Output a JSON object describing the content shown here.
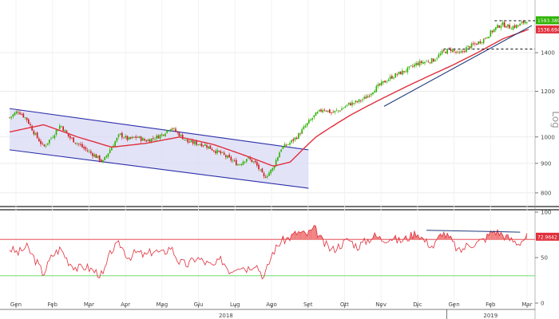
{
  "chart_data": {
    "type": "candlestick",
    "price_scale": "log",
    "price_axis_label": "Log",
    "price_ticks": [
      800,
      900,
      1000,
      1200,
      1400
    ],
    "price_ylim": [
      760,
      1700
    ],
    "month_labels": [
      "Gen",
      "Feb",
      "Mar",
      "Apr",
      "Mag",
      "Giu",
      "Lug",
      "Ago",
      "Set",
      "Ott",
      "Nov",
      "Dic",
      "Gen",
      "Feb",
      "Mar"
    ],
    "year_labels": [
      "2018",
      "2019"
    ],
    "last_price_label": "1593.3899",
    "ma_price_label": "1536.6946",
    "colors": {
      "up": "#2db300",
      "down": "#cc1f1f",
      "ma": "#e0303c",
      "channel": "#2b2fa8",
      "channel_fill": "#d7d7f5",
      "trend": "#203a7a",
      "rsi": "#e0303c",
      "rsi_fill": "#f08080",
      "rsi_upper": "#e0303c",
      "rsi_lower": "#5cd65c"
    },
    "price_anchors": [
      [
        0,
        1080
      ],
      [
        1,
        1110
      ],
      [
        2,
        1075
      ],
      [
        3,
        1010
      ],
      [
        4,
        960
      ],
      [
        5,
        1000
      ],
      [
        6,
        1050
      ],
      [
        7,
        1000
      ],
      [
        8,
        975
      ],
      [
        9,
        950
      ],
      [
        10,
        930
      ],
      [
        11,
        905
      ],
      [
        12,
        960
      ],
      [
        13,
        1010
      ],
      [
        14,
        990
      ],
      [
        15,
        1000
      ],
      [
        16,
        985
      ],
      [
        17,
        995
      ],
      [
        18,
        1010
      ],
      [
        19,
        1040
      ],
      [
        20,
        1010
      ],
      [
        21,
        980
      ],
      [
        22,
        975
      ],
      [
        23,
        970
      ],
      [
        24,
        950
      ],
      [
        25,
        935
      ],
      [
        26,
        915
      ],
      [
        27,
        895
      ],
      [
        28,
        920
      ],
      [
        29,
        900
      ],
      [
        30,
        850
      ],
      [
        31,
        880
      ],
      [
        32,
        955
      ],
      [
        33,
        975
      ],
      [
        34,
        1005
      ],
      [
        35,
        1050
      ],
      [
        36,
        1090
      ],
      [
        37,
        1120
      ],
      [
        38,
        1100
      ],
      [
        39,
        1115
      ],
      [
        40,
        1140
      ],
      [
        41,
        1150
      ],
      [
        42,
        1170
      ],
      [
        43,
        1210
      ],
      [
        44,
        1240
      ],
      [
        45,
        1270
      ],
      [
        46,
        1290
      ],
      [
        47,
        1310
      ],
      [
        48,
        1340
      ],
      [
        49,
        1350
      ],
      [
        50,
        1360
      ],
      [
        51,
        1400
      ],
      [
        52,
        1420
      ],
      [
        53,
        1390
      ],
      [
        54,
        1430
      ],
      [
        55,
        1450
      ],
      [
        56,
        1480
      ],
      [
        57,
        1530
      ],
      [
        58,
        1570
      ],
      [
        59,
        1550
      ],
      [
        60,
        1560
      ],
      [
        61,
        1593
      ]
    ],
    "ma_anchors": [
      [
        0,
        1020
      ],
      [
        4,
        1050
      ],
      [
        8,
        1000
      ],
      [
        12,
        960
      ],
      [
        16,
        975
      ],
      [
        20,
        1000
      ],
      [
        24,
        970
      ],
      [
        28,
        925
      ],
      [
        31,
        890
      ],
      [
        33,
        905
      ],
      [
        36,
        1000
      ],
      [
        40,
        1090
      ],
      [
        44,
        1170
      ],
      [
        48,
        1250
      ],
      [
        52,
        1330
      ],
      [
        55,
        1400
      ],
      [
        58,
        1480
      ],
      [
        61,
        1536
      ]
    ],
    "channel": {
      "upper": [
        [
          0,
          1120
        ],
        [
          34,
          950
        ]
      ],
      "lower": [
        [
          0,
          950
        ],
        [
          34,
          815
        ]
      ]
    },
    "trendline": [
      [
        44,
        1130
      ],
      [
        61,
        1540
      ]
    ],
    "resistance_levels": [
      {
        "from": 51,
        "to": 61,
        "level": 1420
      },
      {
        "from": 57,
        "to": 61,
        "level": 1590
      }
    ],
    "rsi": {
      "label": "72.9642",
      "ticks": [
        0,
        50,
        100
      ],
      "upper_band": 70,
      "lower_band": 30,
      "divergence_line": [
        [
          49,
          80
        ],
        [
          60,
          78
        ]
      ],
      "anchors": [
        [
          0,
          60
        ],
        [
          1,
          55
        ],
        [
          2,
          62
        ],
        [
          3,
          48
        ],
        [
          4,
          32
        ],
        [
          5,
          52
        ],
        [
          6,
          60
        ],
        [
          7,
          45
        ],
        [
          8,
          38
        ],
        [
          9,
          40
        ],
        [
          10,
          35
        ],
        [
          11,
          30
        ],
        [
          12,
          58
        ],
        [
          13,
          65
        ],
        [
          14,
          50
        ],
        [
          15,
          56
        ],
        [
          16,
          52
        ],
        [
          17,
          58
        ],
        [
          18,
          54
        ],
        [
          19,
          62
        ],
        [
          20,
          45
        ],
        [
          21,
          42
        ],
        [
          22,
          50
        ],
        [
          23,
          45
        ],
        [
          24,
          40
        ],
        [
          25,
          48
        ],
        [
          26,
          35
        ],
        [
          27,
          42
        ],
        [
          28,
          38
        ],
        [
          29,
          44
        ],
        [
          30,
          28
        ],
        [
          31,
          55
        ],
        [
          32,
          68
        ],
        [
          33,
          72
        ],
        [
          34,
          78
        ],
        [
          35,
          75
        ],
        [
          36,
          82
        ],
        [
          37,
          66
        ],
        [
          38,
          58
        ],
        [
          39,
          64
        ],
        [
          40,
          70
        ],
        [
          41,
          62
        ],
        [
          42,
          68
        ],
        [
          43,
          74
        ],
        [
          44,
          70
        ],
        [
          45,
          72
        ],
        [
          46,
          68
        ],
        [
          47,
          72
        ],
        [
          48,
          78
        ],
        [
          49,
          68
        ],
        [
          50,
          62
        ],
        [
          51,
          78
        ],
        [
          52,
          70
        ],
        [
          53,
          56
        ],
        [
          54,
          64
        ],
        [
          55,
          66
        ],
        [
          56,
          70
        ],
        [
          57,
          80
        ],
        [
          58,
          76
        ],
        [
          59,
          70
        ],
        [
          60,
          66
        ],
        [
          61,
          72.96
        ]
      ]
    }
  }
}
